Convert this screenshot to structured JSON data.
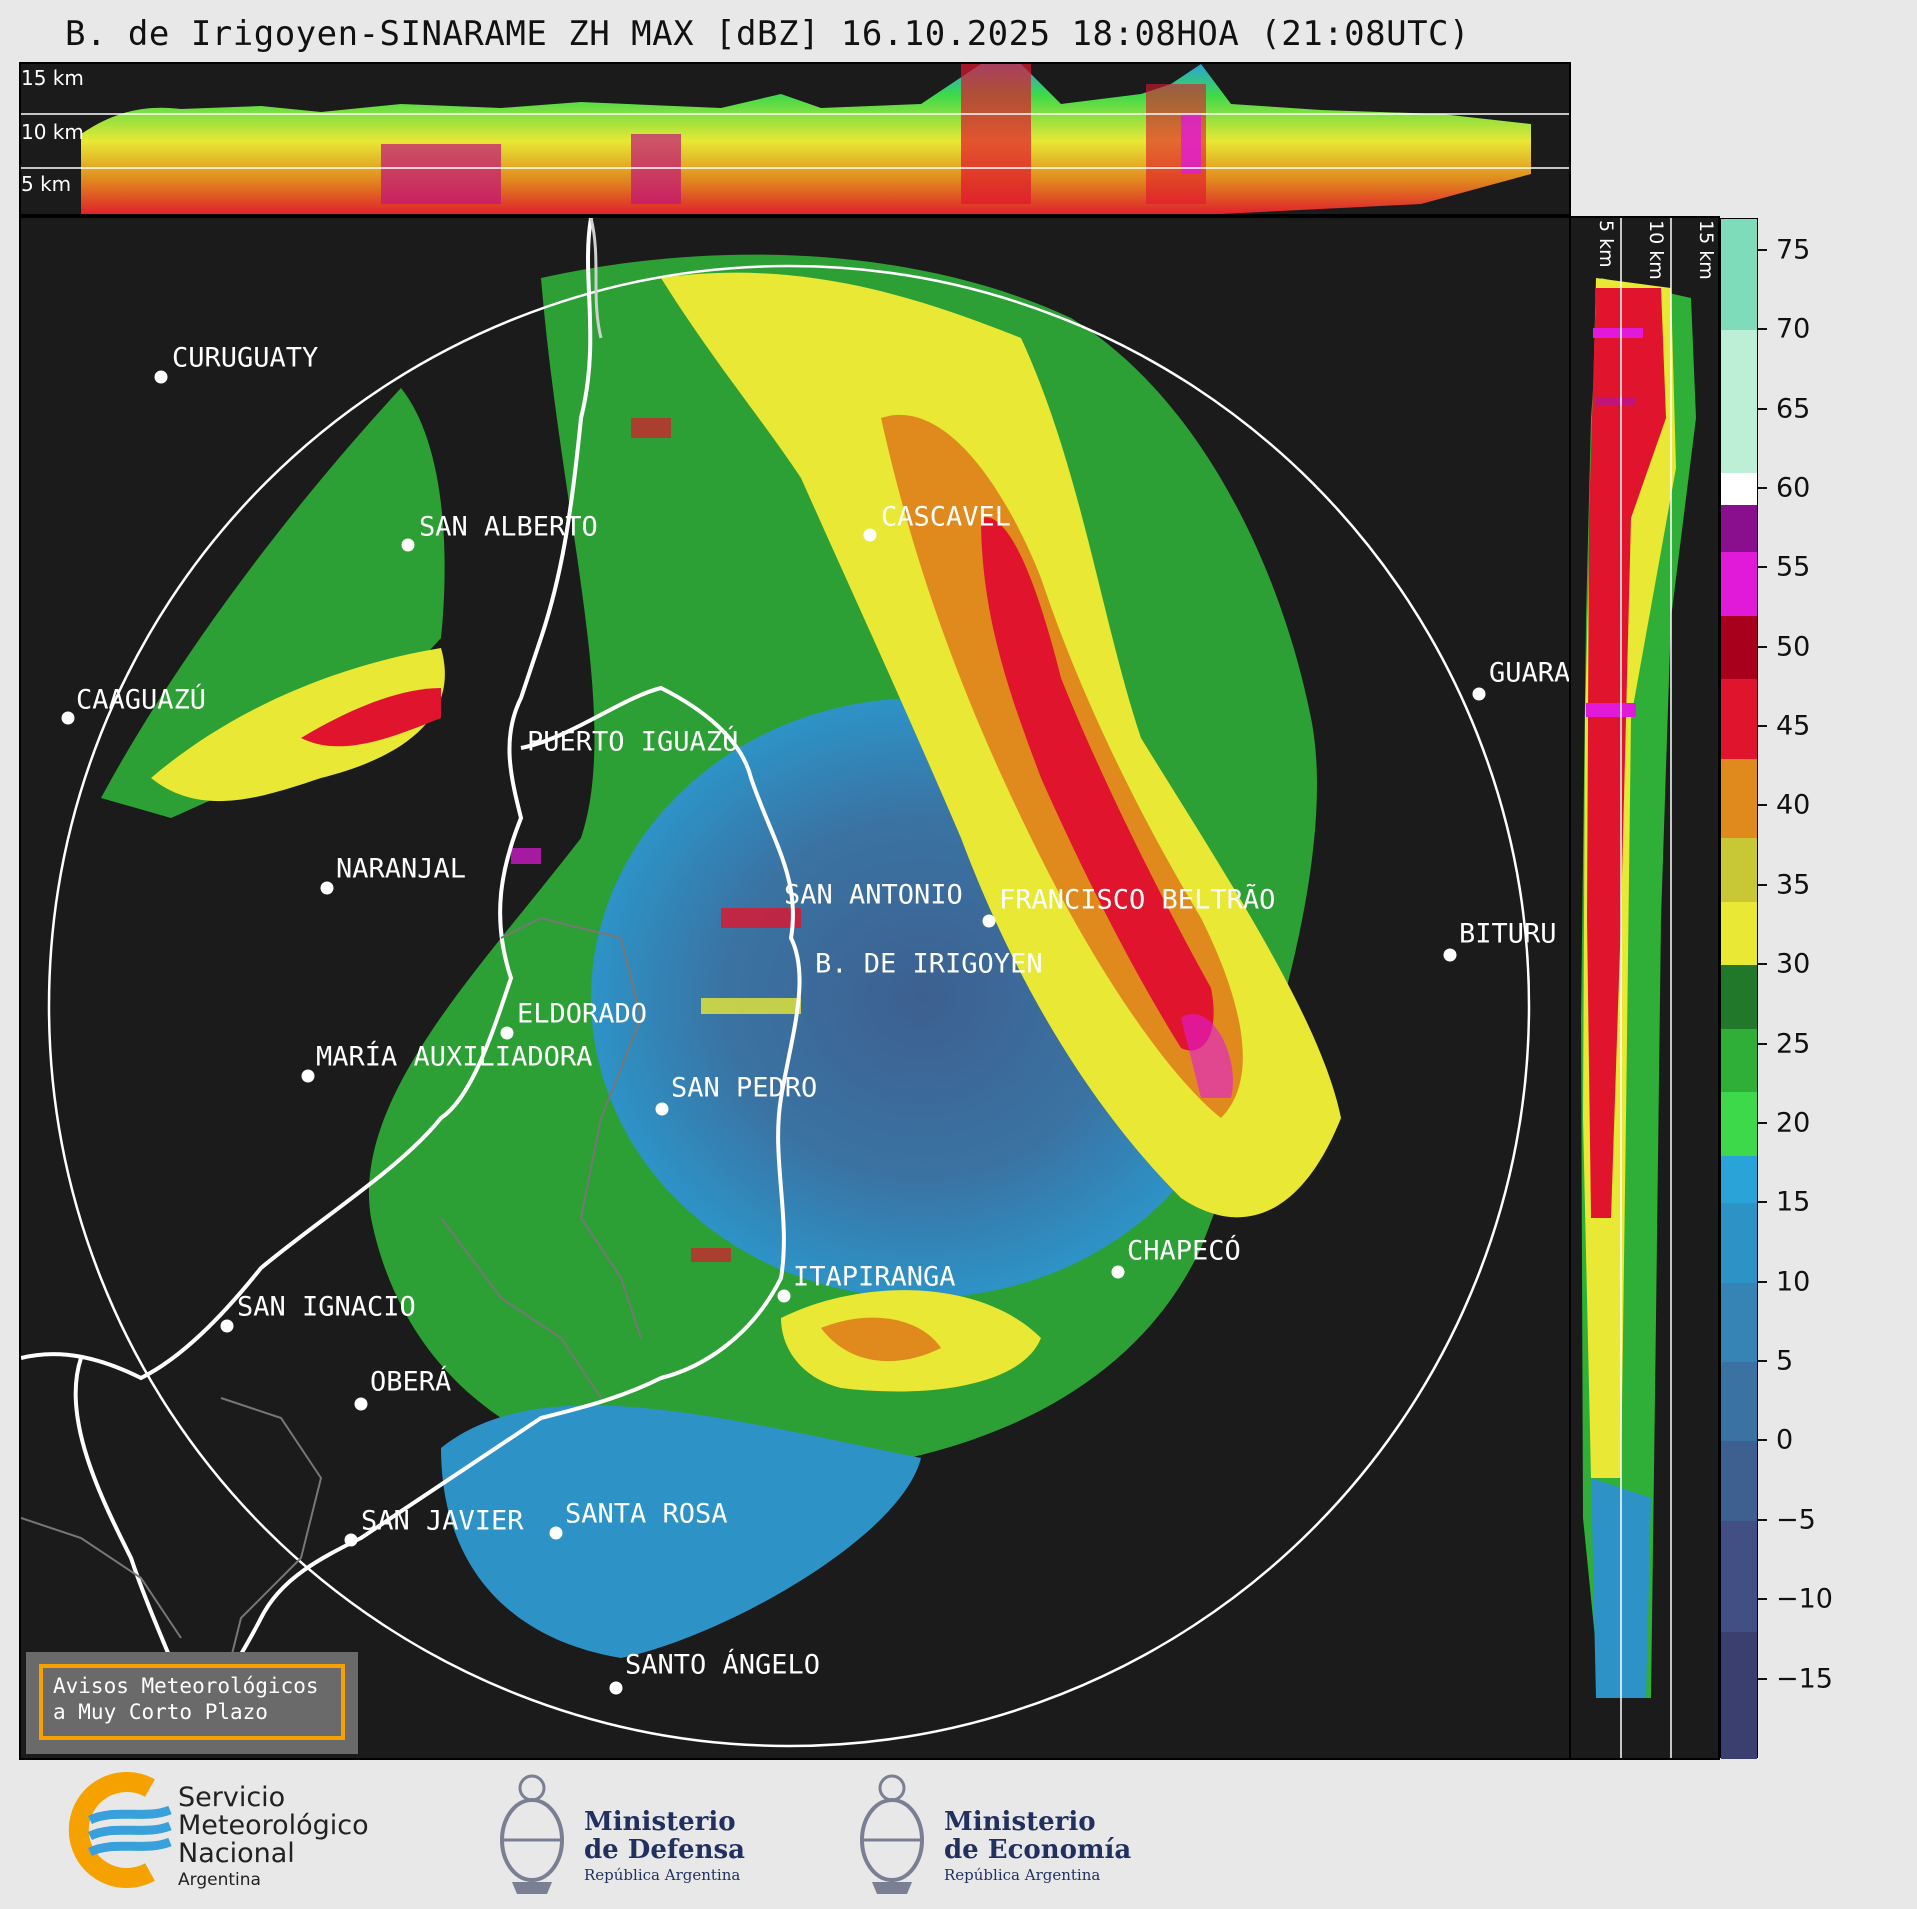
{
  "title": "B. de Irigoyen-SINARAME ZH MAX [dBZ] 16.10.2025 18:08HOA (21:08UTC)",
  "top_panel": {
    "height_labels": [
      "15 km",
      "10 km",
      "5 km"
    ]
  },
  "side_panel": {
    "height_labels": [
      "5 km",
      "10 km",
      "15 km"
    ]
  },
  "colorbar": {
    "unit": "dBZ",
    "min": -20,
    "max": 77,
    "tick_labels": [
      "75",
      "70",
      "65",
      "60",
      "55",
      "50",
      "45",
      "40",
      "35",
      "30",
      "25",
      "20",
      "15",
      "10",
      "5",
      "0",
      "−5",
      "−10",
      "−15"
    ],
    "tick_values": [
      75,
      70,
      65,
      60,
      55,
      50,
      45,
      40,
      35,
      30,
      25,
      20,
      15,
      10,
      5,
      0,
      -5,
      -10,
      -15
    ],
    "bands": [
      {
        "from": -20,
        "to": -12,
        "color": "#3b3f70"
      },
      {
        "from": -12,
        "to": -5,
        "color": "#414f85"
      },
      {
        "from": -5,
        "to": 0,
        "color": "#3d6090"
      },
      {
        "from": 0,
        "to": 5,
        "color": "#3a73a3"
      },
      {
        "from": 5,
        "to": 10,
        "color": "#3584b5"
      },
      {
        "from": 10,
        "to": 15,
        "color": "#2d93c7"
      },
      {
        "from": 15,
        "to": 18,
        "color": "#29a3d8"
      },
      {
        "from": 18,
        "to": 22,
        "color": "#3dd94a"
      },
      {
        "from": 22,
        "to": 26,
        "color": "#2faf37"
      },
      {
        "from": 26,
        "to": 30,
        "color": "#22782a"
      },
      {
        "from": 30,
        "to": 34,
        "color": "#e8e835"
      },
      {
        "from": 34,
        "to": 38,
        "color": "#c8c837"
      },
      {
        "from": 38,
        "to": 43,
        "color": "#e08a1e"
      },
      {
        "from": 43,
        "to": 48,
        "color": "#e0152d"
      },
      {
        "from": 48,
        "to": 52,
        "color": "#a8001c"
      },
      {
        "from": 52,
        "to": 56,
        "color": "#e01ad8"
      },
      {
        "from": 56,
        "to": 59,
        "color": "#8a0f8e"
      },
      {
        "from": 59,
        "to": 61,
        "color": "#ffffff"
      },
      {
        "from": 61,
        "to": 70,
        "color": "#bdeed6"
      },
      {
        "from": 70,
        "to": 77,
        "color": "#7fdcba"
      }
    ]
  },
  "cities": [
    {
      "name": "CURUGUATY"
    },
    {
      "name": "SAN ALBERTO"
    },
    {
      "name": "CASCAVEL"
    },
    {
      "name": "GUARA"
    },
    {
      "name": "CAAGUAZÚ"
    },
    {
      "name": "PUERTO IGUAZÚ"
    },
    {
      "name": "NARANJAL"
    },
    {
      "name": "SAN ANTONIO"
    },
    {
      "name": "FRANCISCO BELTRÃO"
    },
    {
      "name": "BITURU"
    },
    {
      "name": "B. DE IRIGOYEN"
    },
    {
      "name": "ELDORADO"
    },
    {
      "name": "MARÍA AUXILIADORA"
    },
    {
      "name": "SAN PEDRO"
    },
    {
      "name": "CHAPECÓ"
    },
    {
      "name": "ITAPIRANGA"
    },
    {
      "name": "SAN IGNACIO"
    },
    {
      "name": "OBERÁ"
    },
    {
      "name": "SAN JAVIER"
    },
    {
      "name": "SANTA ROSA"
    },
    {
      "name": "SANTO ÁNGELO"
    }
  ],
  "warning": {
    "line1": "Avisos Meteorológicos",
    "line2": "a Muy Corto Plazo"
  },
  "logos": {
    "smn_line1": "Servicio",
    "smn_line2": "Meteorológico",
    "smn_line3": "Nacional",
    "smn_line4": "Argentina",
    "defensa_line1": "Ministerio",
    "defensa_line2": "de Defensa",
    "defensa_sub": "República Argentina",
    "economia_line1": "Ministerio",
    "economia_line2": "de Economía",
    "economia_sub": "República Argentina"
  },
  "colors": {
    "map_background": "#1b1b1b",
    "range_ring": "#ffffff",
    "warning_border": "#f5a100",
    "smn_blue": "#3aa0dc",
    "smn_orange": "#f5a100",
    "ministry_blue": "#223060"
  }
}
